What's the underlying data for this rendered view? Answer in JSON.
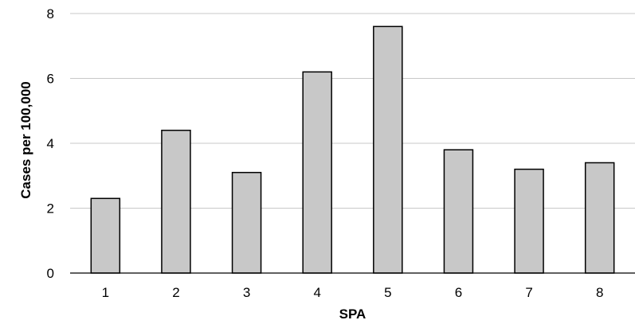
{
  "chart_data": {
    "type": "bar",
    "title": "",
    "xlabel": "SPA",
    "ylabel": "Cases per 100,000",
    "categories": [
      "1",
      "2",
      "3",
      "4",
      "5",
      "6",
      "7",
      "8"
    ],
    "values": [
      2.3,
      4.4,
      3.1,
      6.2,
      7.6,
      3.8,
      3.2,
      3.4
    ],
    "ylim": [
      0,
      8
    ],
    "yticks": [
      "0",
      "2",
      "4",
      "6",
      "8"
    ],
    "grid": true,
    "legend": "none",
    "bar_color": "#c8c8c8",
    "bar_edge_color": "#000000",
    "grid_color": "#c8c8c8"
  }
}
